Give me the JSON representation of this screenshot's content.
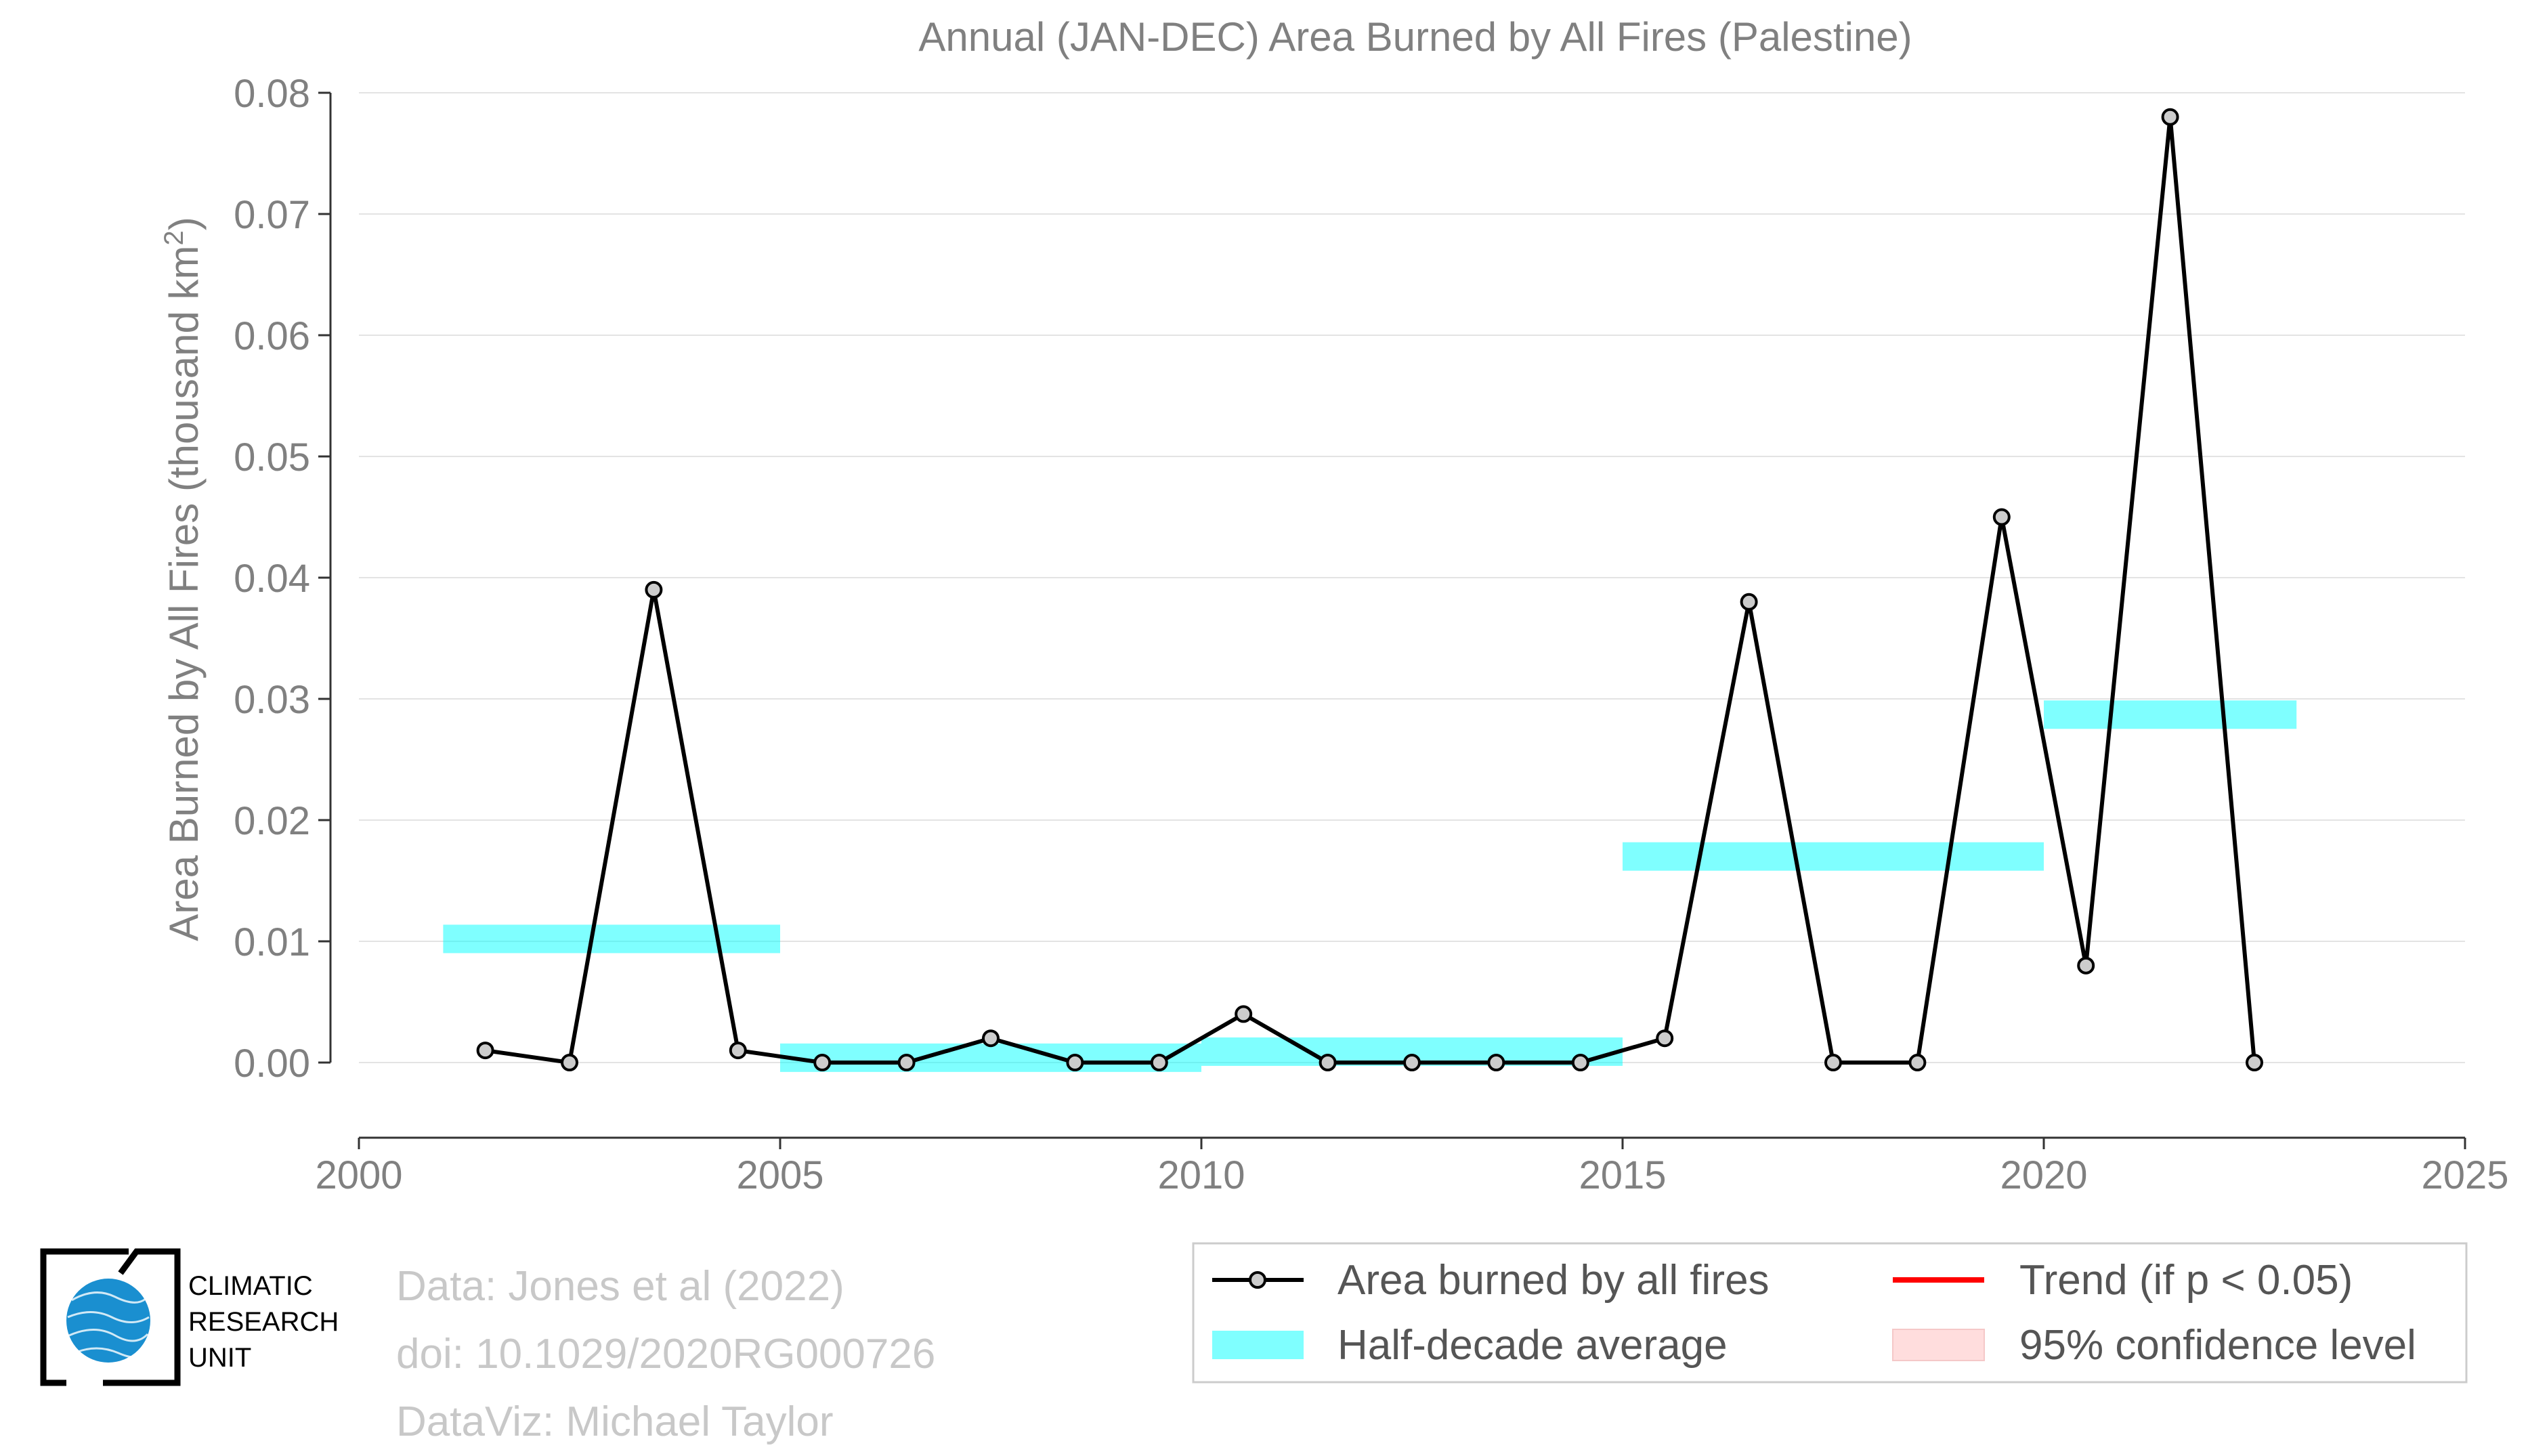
{
  "chart_data": {
    "type": "line",
    "title": "Annual (JAN-DEC) Area Burned by All Fires (Palestine)",
    "ylabel": "Area Burned by All Fires (thousand km",
    "ylabel_sup": "2",
    "ylabel_close": ")",
    "xlabel": "",
    "xlim": [
      2000,
      2025
    ],
    "ylim": [
      -0.0062,
      0.08
    ],
    "x_ticks": [
      "2000",
      "2005",
      "2010",
      "2015",
      "2020",
      "2025"
    ],
    "y_ticks": [
      "0.00",
      "0.01",
      "0.02",
      "0.03",
      "0.04",
      "0.05",
      "0.06",
      "0.07",
      "0.08"
    ],
    "grid": "horizontal",
    "series": [
      {
        "name": "Area burned by all fires",
        "color": "#000000",
        "x": [
          2001.5,
          2002.5,
          2003.5,
          2004.5,
          2005.5,
          2006.5,
          2007.5,
          2008.5,
          2009.5,
          2010.5,
          2011.5,
          2012.5,
          2013.5,
          2014.5,
          2015.5,
          2016.5,
          2017.5,
          2018.5,
          2019.5,
          2020.5,
          2021.5,
          2022.5
        ],
        "y": [
          0.001,
          0.0,
          0.039,
          0.001,
          0.0,
          0.0,
          0.002,
          0.0,
          0.0,
          0.004,
          0.0,
          0.0,
          0.0,
          0.0,
          0.002,
          0.038,
          0.0,
          0.0,
          0.045,
          0.008,
          0.078,
          0.0
        ]
      }
    ],
    "half_decade_average": {
      "name": "Half-decade average",
      "color": "#00ffff",
      "segments": [
        {
          "x": [
            2001,
            2005
          ],
          "y": 0.0102
        },
        {
          "x": [
            2005,
            2010
          ],
          "y": 0.0004
        },
        {
          "x": [
            2010,
            2015
          ],
          "y": 0.0009
        },
        {
          "x": [
            2015,
            2020
          ],
          "y": 0.017
        },
        {
          "x": [
            2020,
            2023
          ],
          "y": 0.0287
        }
      ]
    },
    "legend": {
      "position": "bottom-right",
      "entries": [
        {
          "label": "Area burned by all fires",
          "kind": "line-marker",
          "color": "#000000"
        },
        {
          "label": "Trend (if p < 0.05)",
          "kind": "line",
          "color": "#ff0000"
        },
        {
          "label": "Half-decade average",
          "kind": "band",
          "color": "#00ffff"
        },
        {
          "label": "95% confidence level",
          "kind": "band",
          "color": "#ffdddd"
        }
      ]
    }
  },
  "credits": [
    "Data: Jones et al (2022)",
    "doi: 10.1029/2020RG000726",
    "DataViz: Michael Taylor"
  ],
  "logo": {
    "lines": [
      "CLIMATIC",
      "RESEARCH",
      "UNIT"
    ]
  }
}
